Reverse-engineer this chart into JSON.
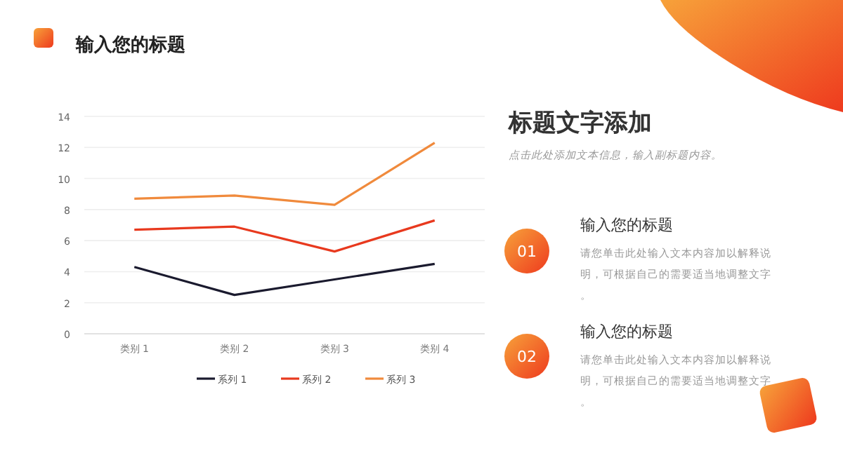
{
  "chart_data": {
    "type": "line",
    "title": "输入您的标题",
    "categories": [
      "类别 1",
      "类别 2",
      "类别 3",
      "类别 4"
    ],
    "series": [
      {
        "name": "系列 1",
        "color": "#1a1a2e",
        "values": [
          4.3,
          2.5,
          3.5,
          4.5
        ]
      },
      {
        "name": "系列 2",
        "color": "#e8391e",
        "values": [
          6.7,
          6.9,
          5.3,
          7.3
        ]
      },
      {
        "name": "系列 3",
        "color": "#f08a3c",
        "values": [
          8.7,
          8.9,
          8.3,
          12.3
        ]
      }
    ],
    "ylim": [
      0,
      14
    ],
    "yticks": [
      0,
      2,
      4,
      6,
      8,
      10,
      12,
      14
    ],
    "grid": "y",
    "legend": "bottom",
    "marker": "none",
    "annotations": [
      "标题文字添加",
      "点击此处添加文本信息，输入副标题内容。",
      "01",
      "输入您的标题",
      "请您单击此处输入文本内容加以解释说明，可根据自己的需要适当地调整文字。",
      "02",
      "输入您的标题",
      "请您单击此处输入文本内容加以解释说明，可根据自己的需要适当地调整文字。"
    ]
  }
}
